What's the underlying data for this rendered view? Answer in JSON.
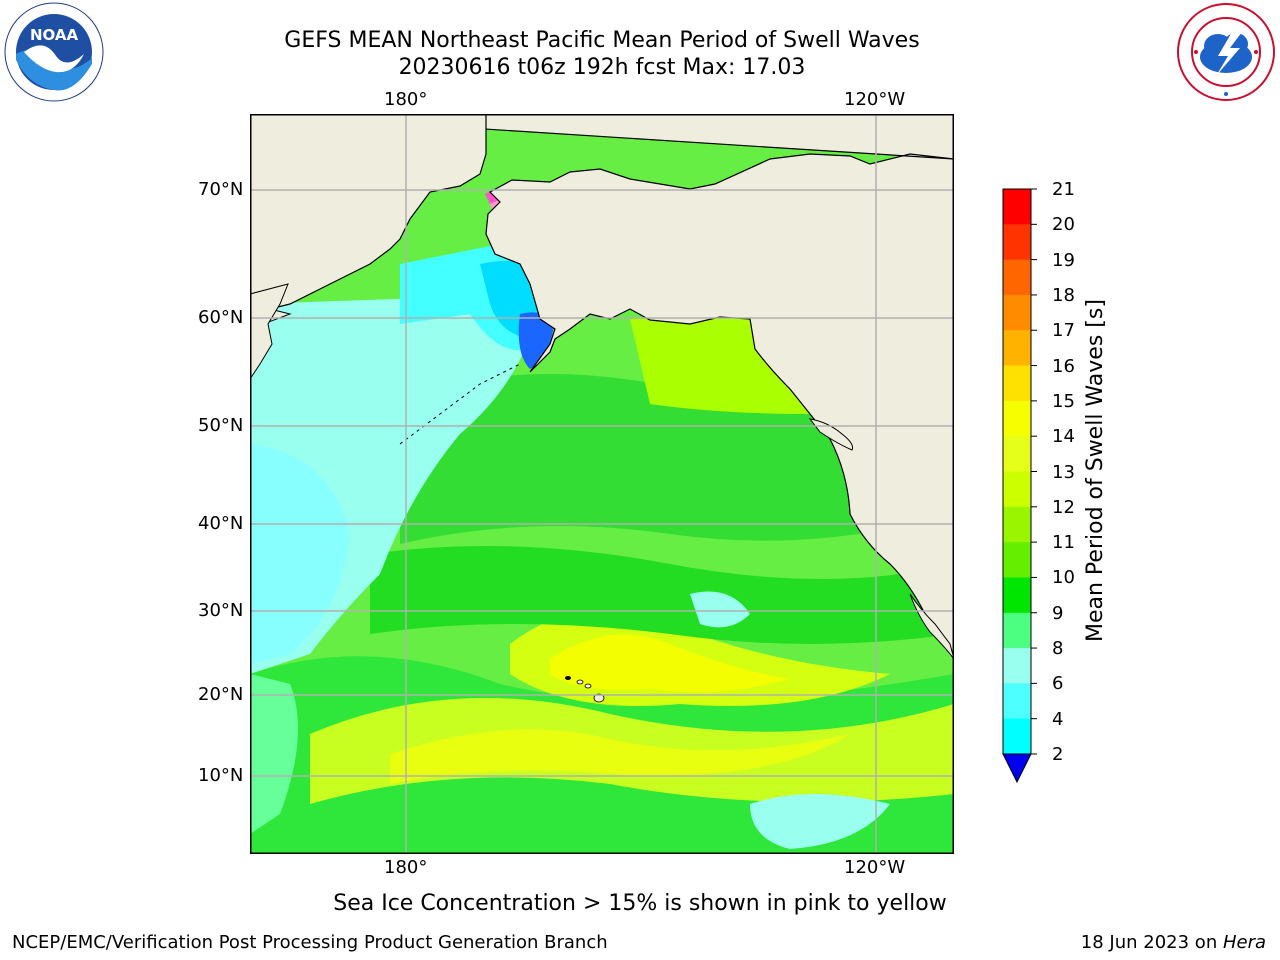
{
  "title": {
    "line1": "GEFS MEAN Northeast Pacific Mean Period of Swell Waves",
    "line2": "20230616 t06z 192h fcst   Max: 17.03"
  },
  "logos": {
    "left": {
      "icon": "noaa-logo",
      "text": "NOAA",
      "ring_text": "NATIONAL OCEANIC AND ATMOSPHERIC ADMINISTRATION · U.S. DEPARTMENT OF COMMERCE"
    },
    "right": {
      "icon": "nws-logo",
      "ring_text": "NATIONAL WEATHER SERVICE"
    }
  },
  "map": {
    "lon_labels_top": [
      "180°",
      "120°W"
    ],
    "lon_labels_bottom": [
      "180°",
      "120°W"
    ],
    "lat_labels": [
      "70°N",
      "60°N",
      "50°N",
      "40°N",
      "30°N",
      "20°N",
      "10°N"
    ],
    "colors": {
      "land": "#efedde",
      "coast": "#000000",
      "grid": "#b0b0b0"
    }
  },
  "colorbar": {
    "label": "Mean Period of Swell Waves [s]",
    "ticks": [
      "21",
      "20",
      "19",
      "18",
      "17",
      "16",
      "15",
      "14",
      "13",
      "12",
      "11",
      "10",
      "9",
      "8",
      "6",
      "4",
      "2"
    ],
    "colors_top_to_bottom": [
      "#ff0000",
      "#ff3300",
      "#ff6600",
      "#ff8c00",
      "#ffb300",
      "#ffe100",
      "#f6ff00",
      "#e6ff1a",
      "#ccff00",
      "#99f500",
      "#66ee00",
      "#00e600",
      "#4dff80",
      "#99ffee",
      "#4dffff",
      "#00ffff",
      "#00eeff",
      "#0070ff"
    ],
    "extend_color": "#0000ee"
  },
  "sea_ice_note": "Sea Ice Concentration > 15% is shown in pink to yellow",
  "footer": {
    "left": "NCEP/EMC/Verification Post Processing Product Generation Branch",
    "date": "18 Jun 2023 on ",
    "machine": "Hera"
  }
}
